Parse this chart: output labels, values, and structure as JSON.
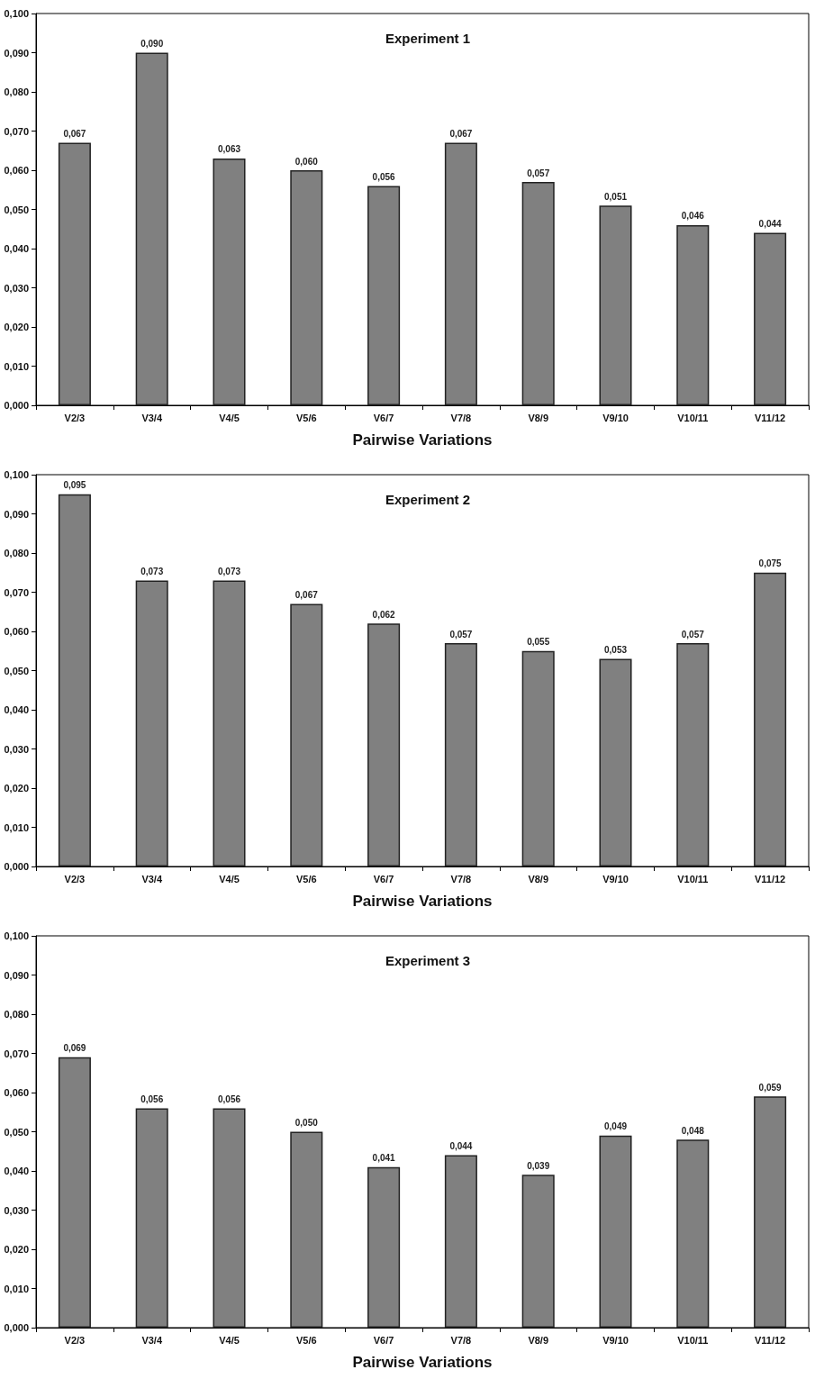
{
  "chart_data": [
    {
      "type": "bar",
      "title": "Experiment 1",
      "xlabel": "Pairwise Variations",
      "categories": [
        "V2/3",
        "V3/4",
        "V4/5",
        "V5/6",
        "V6/7",
        "V7/8",
        "V8/9",
        "V9/10",
        "V10/11",
        "V11/12"
      ],
      "values": [
        0.067,
        0.09,
        0.063,
        0.06,
        0.056,
        0.067,
        0.057,
        0.051,
        0.046,
        0.044
      ],
      "value_labels": [
        "0,067",
        "0,090",
        "0,063",
        "0,060",
        "0,056",
        "0,067",
        "0,057",
        "0,051",
        "0,046",
        "0,044"
      ],
      "color": "#808080",
      "ylim": [
        0,
        0.1
      ],
      "yticks": [
        {
          "value": 0,
          "label": "0,000"
        },
        {
          "value": 0.01,
          "label": "0,010"
        },
        {
          "value": 0.02,
          "label": "0,020"
        },
        {
          "value": 0.03,
          "label": "0,030"
        },
        {
          "value": 0.04,
          "label": "0,040"
        },
        {
          "value": 0.05,
          "label": "0,050"
        },
        {
          "value": 0.06,
          "label": "0,060"
        },
        {
          "value": 0.07,
          "label": "0,070"
        },
        {
          "value": 0.08,
          "label": "0,080"
        },
        {
          "value": 0.09,
          "label": "0,090"
        },
        {
          "value": 0.1,
          "label": "0,100"
        }
      ],
      "grid": false
    },
    {
      "type": "bar",
      "title": "Experiment 2",
      "xlabel": "Pairwise Variations",
      "categories": [
        "V2/3",
        "V3/4",
        "V4/5",
        "V5/6",
        "V6/7",
        "V7/8",
        "V8/9",
        "V9/10",
        "V10/11",
        "V11/12"
      ],
      "values": [
        0.095,
        0.073,
        0.073,
        0.067,
        0.062,
        0.057,
        0.055,
        0.053,
        0.057,
        0.075
      ],
      "value_labels": [
        "0,095",
        "0,073",
        "0,073",
        "0,067",
        "0,062",
        "0,057",
        "0,055",
        "0,053",
        "0,057",
        "0,075"
      ],
      "color": "#808080",
      "ylim": [
        0,
        0.1
      ],
      "yticks": [
        {
          "value": 0,
          "label": "0,000"
        },
        {
          "value": 0.01,
          "label": "0,010"
        },
        {
          "value": 0.02,
          "label": "0,020"
        },
        {
          "value": 0.03,
          "label": "0,030"
        },
        {
          "value": 0.04,
          "label": "0,040"
        },
        {
          "value": 0.05,
          "label": "0,050"
        },
        {
          "value": 0.06,
          "label": "0,060"
        },
        {
          "value": 0.07,
          "label": "0,070"
        },
        {
          "value": 0.08,
          "label": "0,080"
        },
        {
          "value": 0.09,
          "label": "0,090"
        },
        {
          "value": 0.1,
          "label": "0,100"
        }
      ],
      "grid": false
    },
    {
      "type": "bar",
      "title": "Experiment 3",
      "xlabel": "Pairwise Variations",
      "categories": [
        "V2/3",
        "V3/4",
        "V4/5",
        "V5/6",
        "V6/7",
        "V7/8",
        "V8/9",
        "V9/10",
        "V10/11",
        "V11/12"
      ],
      "values": [
        0.069,
        0.056,
        0.056,
        0.05,
        0.041,
        0.044,
        0.039,
        0.049,
        0.048,
        0.059
      ],
      "value_labels": [
        "0,069",
        "0,056",
        "0,056",
        "0,050",
        "0,041",
        "0,044",
        "0,039",
        "0,049",
        "0,048",
        "0,059"
      ],
      "color": "#808080",
      "ylim": [
        0,
        0.1
      ],
      "yticks": [
        {
          "value": 0,
          "label": "0,000"
        },
        {
          "value": 0.01,
          "label": "0,010"
        },
        {
          "value": 0.02,
          "label": "0,020"
        },
        {
          "value": 0.03,
          "label": "0,030"
        },
        {
          "value": 0.04,
          "label": "0,040"
        },
        {
          "value": 0.05,
          "label": "0,050"
        },
        {
          "value": 0.06,
          "label": "0,060"
        },
        {
          "value": 0.07,
          "label": "0,070"
        },
        {
          "value": 0.08,
          "label": "0,080"
        },
        {
          "value": 0.09,
          "label": "0,090"
        },
        {
          "value": 0.1,
          "label": "0,100"
        }
      ],
      "grid": false
    }
  ]
}
